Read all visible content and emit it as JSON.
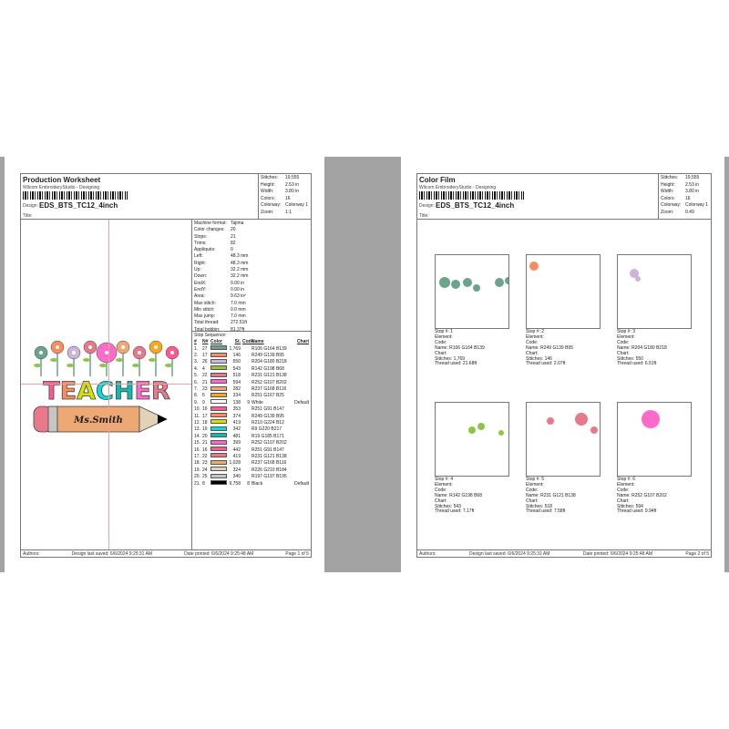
{
  "stats": {
    "stitches": "19,555",
    "height": "2.53 in",
    "width": "3.80 in",
    "colors": "16",
    "colorway": "Colorway 1"
  },
  "labels": {
    "stitches": "Stitches:",
    "height": "Height:",
    "width": "Width:",
    "colors": "Colors:",
    "colorway": "Colorway:",
    "zoom": "Zoom:",
    "app": "Wilcom EmbroideryStudio - Designing",
    "design_label": "Design:",
    "design": "EDS_BTS_TC12_4inch",
    "title_label": "Title:",
    "authors": "Authors:",
    "saved": "Design last saved:  6/6/2024 9:25:31 AM",
    "printed": "Date printed: 6/6/2024 9:25:48 AM"
  },
  "page1": {
    "title": "Production Worksheet",
    "zoom": "1:1",
    "page": "Page 1 of 5",
    "machine": [
      [
        "Machine format:",
        "Tajima"
      ],
      [
        "Color changes:",
        "20"
      ],
      [
        "Stops:",
        "21"
      ],
      [
        "Trims:",
        "82"
      ],
      [
        "Appliqués:",
        "0"
      ],
      [
        "Left:",
        "48.3 mm"
      ],
      [
        "Right:",
        "48.3 mm"
      ],
      [
        "Up:",
        "32.2 mm"
      ],
      [
        "Down:",
        "32.2 mm"
      ],
      [
        "EndX:",
        "0.00 in"
      ],
      [
        "EndY:",
        "0.00 in"
      ],
      [
        "Area:",
        "9.63 in²"
      ],
      [
        "Max stitch:",
        "7.0 mm"
      ],
      [
        "Min stitch:",
        "0.0 mm"
      ],
      [
        "Max jump:",
        "7.0 mm"
      ],
      [
        "Total thread:",
        "272.51ft"
      ],
      [
        "Total bobbin:",
        "81.37ft"
      ]
    ],
    "seq_title": "Stop Sequence:",
    "seq_headers": [
      "#",
      "N#",
      "Color",
      "St.",
      "Code",
      "Name",
      "Chart"
    ],
    "stops": [
      [
        "1.",
        "27",
        "#6aa48b",
        "1,769",
        "",
        "R106 G164 B139",
        ""
      ],
      [
        "2.",
        "17",
        "#f98b5f",
        "146",
        "",
        "R249 G139 B95",
        ""
      ],
      [
        "3.",
        "26",
        "#ccb4da",
        "550",
        "",
        "R204 G180 B218",
        ""
      ],
      [
        "4.",
        "4",
        "#8ec644",
        "543",
        "",
        "R142 G198 B68",
        ""
      ],
      [
        "5.",
        "22",
        "#e7798a",
        "518",
        "",
        "R231 G121 B138",
        ""
      ],
      [
        "6.",
        "21",
        "#fc6bca",
        "594",
        "",
        "R252 G107 B202",
        ""
      ],
      [
        "7.",
        "23",
        "#eda874",
        "282",
        "",
        "R237 G168 B116",
        ""
      ],
      [
        "8.",
        "6",
        "#fba719",
        "334",
        "",
        "R251 G167 B25",
        ""
      ],
      [
        "9.",
        "9",
        "#ffffff",
        "138",
        "9",
        "White",
        "Default"
      ],
      [
        "10.",
        "16",
        "#fb5b93",
        "353",
        "",
        "R251 G91 B147",
        ""
      ],
      [
        "11.",
        "17",
        "#f98b5f",
        "374",
        "",
        "R249 G139 B95",
        ""
      ],
      [
        "12.",
        "18",
        "#d2e00c",
        "419",
        "",
        "R210 G224 B12",
        ""
      ],
      [
        "13.",
        "19",
        "#09dcd9",
        "342",
        "",
        "R9 G220 B217",
        ""
      ],
      [
        "14.",
        "20",
        "#13b9ab",
        "481",
        "",
        "R19 G185 B171",
        ""
      ],
      [
        "15.",
        "21",
        "#fc6bca",
        "399",
        "",
        "R252 G107 B202",
        ""
      ],
      [
        "16.",
        "16",
        "#fb5b93",
        "442",
        "",
        "R251 G91 B147",
        ""
      ],
      [
        "17.",
        "22",
        "#e7798a",
        "419",
        "",
        "R231 G121 B138",
        ""
      ],
      [
        "18.",
        "23",
        "#eda874",
        "1,028",
        "",
        "R237 G168 B116",
        ""
      ],
      [
        "19.",
        "24",
        "#e2d2b8",
        "324",
        "",
        "R226 G210 B184",
        ""
      ],
      [
        "20.",
        "25",
        "#c5c5c3",
        "340",
        "",
        "R197 G197 B195",
        ""
      ],
      [
        "21.",
        "8",
        "#000000",
        "9,758",
        "8",
        "Black",
        "Default"
      ]
    ],
    "art": {
      "word": "TEACHER",
      "name": "Ms.Smith",
      "letter_colors": [
        "#fb5b93",
        "#f98b5f",
        "#d2e00c",
        "#09dcd9",
        "#13b9ab",
        "#fc6bca",
        "#e7798a"
      ]
    }
  },
  "page2": {
    "title": "Color Film",
    "zoom": "0.49",
    "page": "Page 2 of 5",
    "cards": [
      {
        "stop": "Stop #: 1",
        "element": "Element:",
        "code": "Code:",
        "name": "Name: R106 G164 B139",
        "chart": "Chart:",
        "stitches": "Stitches: 1,769",
        "thread": "Thread used: 21.68ft",
        "color": "#6aa48b"
      },
      {
        "stop": "Stop #: 2",
        "element": "Element:",
        "code": "Code:",
        "name": "Name: R249 G139 B95",
        "chart": "Chart:",
        "stitches": "Stitches: 146",
        "thread": "Thread used: 2.07ft",
        "color": "#f98b5f"
      },
      {
        "stop": "Stop #: 3",
        "element": "Element:",
        "code": "Code:",
        "name": "Name: R204 G180 B218",
        "chart": "Chart:",
        "stitches": "Stitches: 550",
        "thread": "Thread used: 6.51ft",
        "color": "#ccb4da"
      },
      {
        "stop": "Stop #: 4",
        "element": "Element:",
        "code": "Code:",
        "name": "Name: R142 G198 B68",
        "chart": "Chart:",
        "stitches": "Stitches: 543",
        "thread": "Thread used: 7.17ft",
        "color": "#8ec644"
      },
      {
        "stop": "Stop #: 5",
        "element": "Element:",
        "code": "Code:",
        "name": "Name: R231 G121 B138",
        "chart": "Chart:",
        "stitches": "Stitches: 518",
        "thread": "Thread used: 7.58ft",
        "color": "#e7798a"
      },
      {
        "stop": "Stop #: 6",
        "element": "Element:",
        "code": "Code:",
        "name": "Name: R252 G107 B202",
        "chart": "Chart:",
        "stitches": "Stitches: 594",
        "thread": "Thread used: 9.94ft",
        "color": "#fc6bca"
      }
    ]
  }
}
